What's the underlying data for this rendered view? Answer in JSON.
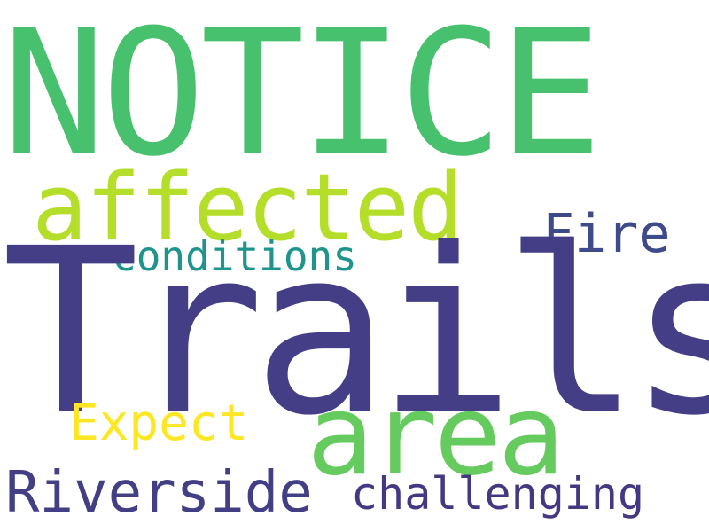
{
  "words": [
    {
      "id": "notice",
      "text": "NOTICE",
      "color": "#48c16e"
    },
    {
      "id": "trails",
      "text": "Trails",
      "color": "#433e85"
    },
    {
      "id": "affected",
      "text": "affected",
      "color": "#b5de2b"
    },
    {
      "id": "area",
      "text": "area",
      "color": "#65cb5e"
    },
    {
      "id": "fire",
      "text": "Fire",
      "color": "#3e4a89"
    },
    {
      "id": "conditions",
      "text": "conditions",
      "color": "#1f948c"
    },
    {
      "id": "expect",
      "text": "Expect",
      "color": "#fde725"
    },
    {
      "id": "riverside",
      "text": "Riverside",
      "color": "#423f85"
    },
    {
      "id": "challenging",
      "text": "challenging",
      "color": "#453781"
    }
  ]
}
